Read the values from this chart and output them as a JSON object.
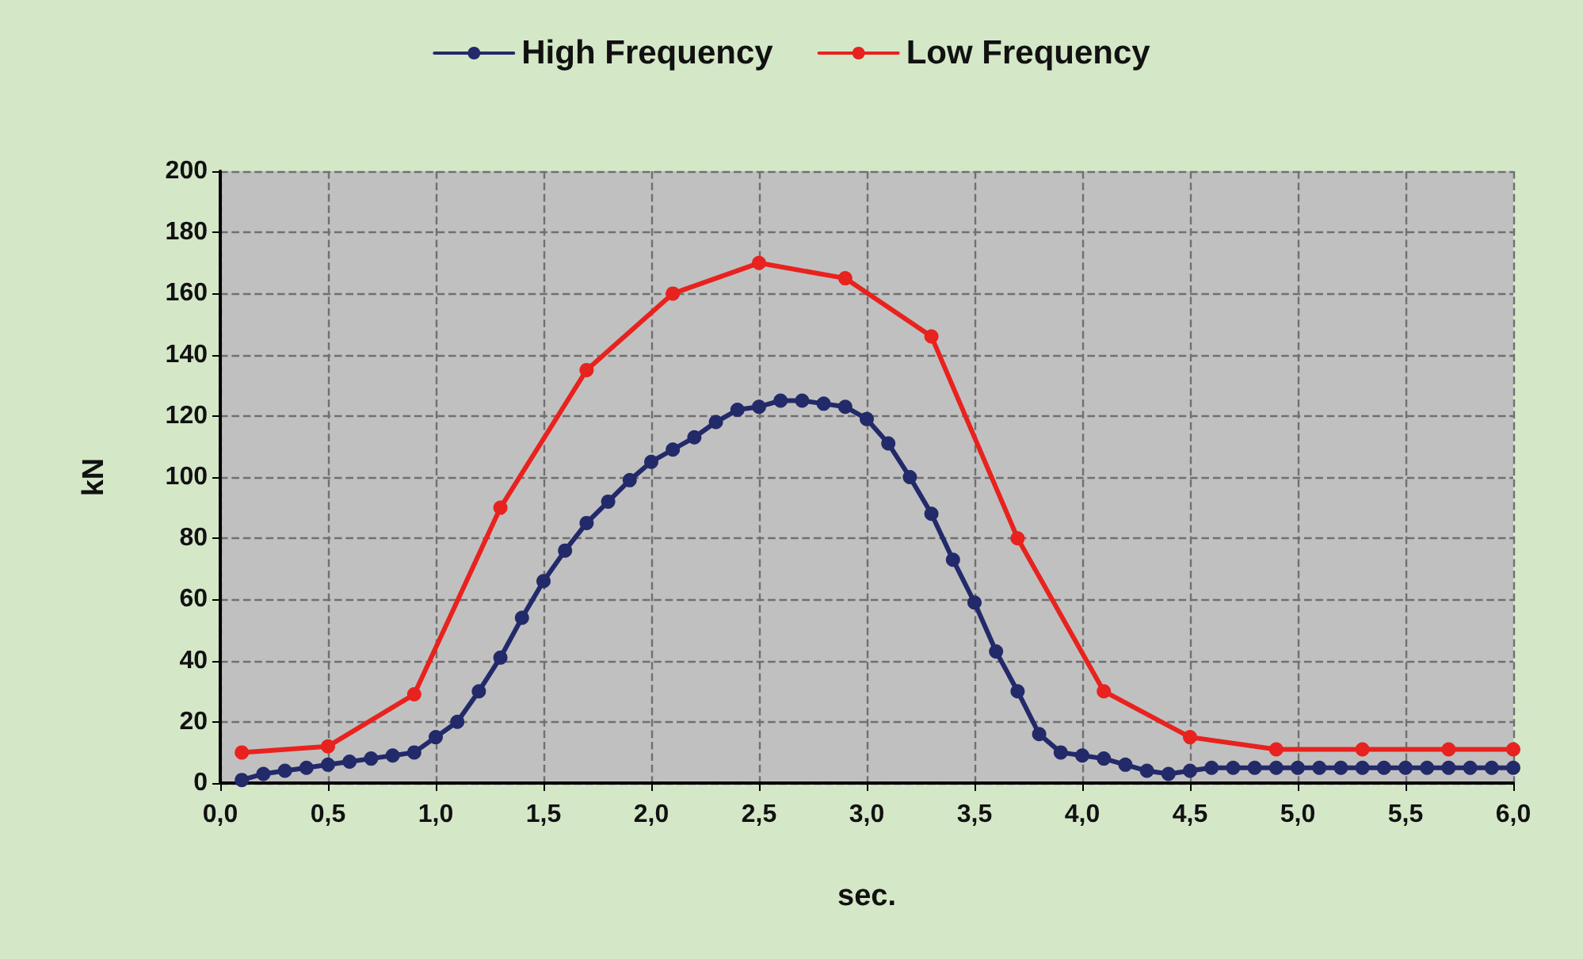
{
  "chart_data": {
    "type": "line",
    "xlabel": "sec.",
    "ylabel": "kN",
    "xlim": [
      0,
      6
    ],
    "ylim": [
      0,
      200
    ],
    "xticks": [
      {
        "value": 0,
        "label": "0,0"
      },
      {
        "value": 0.5,
        "label": "0,5"
      },
      {
        "value": 1,
        "label": "1,0"
      },
      {
        "value": 1.5,
        "label": "1,5"
      },
      {
        "value": 2,
        "label": "2,0"
      },
      {
        "value": 2.5,
        "label": "2,5"
      },
      {
        "value": 3,
        "label": "3,0"
      },
      {
        "value": 3.5,
        "label": "3,5"
      },
      {
        "value": 4,
        "label": "4,0"
      },
      {
        "value": 4.5,
        "label": "4,5"
      },
      {
        "value": 5,
        "label": "5,0"
      },
      {
        "value": 5.5,
        "label": "5,5"
      },
      {
        "value": 6,
        "label": "6,0"
      }
    ],
    "yticks": [
      0,
      20,
      40,
      60,
      80,
      100,
      120,
      140,
      160,
      180,
      200
    ],
    "grid": true,
    "legend": "top",
    "marker": "circle",
    "line_style": "solid",
    "series": [
      {
        "name": "High Frequency",
        "color": "#232a6a",
        "x": [
          0.1,
          0.2,
          0.3,
          0.4,
          0.5,
          0.6,
          0.7,
          0.8,
          0.9,
          1.0,
          1.1,
          1.2,
          1.3,
          1.4,
          1.5,
          1.6,
          1.7,
          1.8,
          1.9,
          2.0,
          2.1,
          2.2,
          2.3,
          2.4,
          2.5,
          2.6,
          2.7,
          2.8,
          2.9,
          3.0,
          3.1,
          3.2,
          3.3,
          3.4,
          3.5,
          3.6,
          3.7,
          3.8,
          3.9,
          4.0,
          4.1,
          4.2,
          4.3,
          4.4,
          4.5,
          4.6,
          4.7,
          4.8,
          4.9,
          5.0,
          5.1,
          5.2,
          5.3,
          5.4,
          5.5,
          5.6,
          5.7,
          5.8,
          5.9,
          6.0
        ],
        "values": [
          1,
          3,
          4,
          5,
          6,
          7,
          8,
          9,
          10,
          15,
          20,
          30,
          41,
          54,
          66,
          76,
          85,
          92,
          99,
          105,
          109,
          113,
          118,
          122,
          123,
          125,
          125,
          124,
          123,
          119,
          111,
          100,
          88,
          73,
          59,
          43,
          30,
          16,
          10,
          9,
          8,
          6,
          4,
          3,
          4,
          5,
          5,
          5,
          5,
          5,
          5,
          5,
          5,
          5,
          5,
          5,
          5,
          5,
          5,
          5
        ]
      },
      {
        "name": "Low Frequency",
        "color": "#e8221e",
        "x": [
          0.1,
          0.5,
          0.9,
          1.3,
          1.7,
          2.1,
          2.5,
          2.9,
          3.3,
          3.7,
          4.1,
          4.5,
          4.9,
          5.3,
          5.7,
          6.0
        ],
        "values": [
          10,
          12,
          29,
          90,
          135,
          160,
          170,
          165,
          146,
          80,
          30,
          15,
          11,
          11,
          11,
          11
        ]
      }
    ]
  }
}
